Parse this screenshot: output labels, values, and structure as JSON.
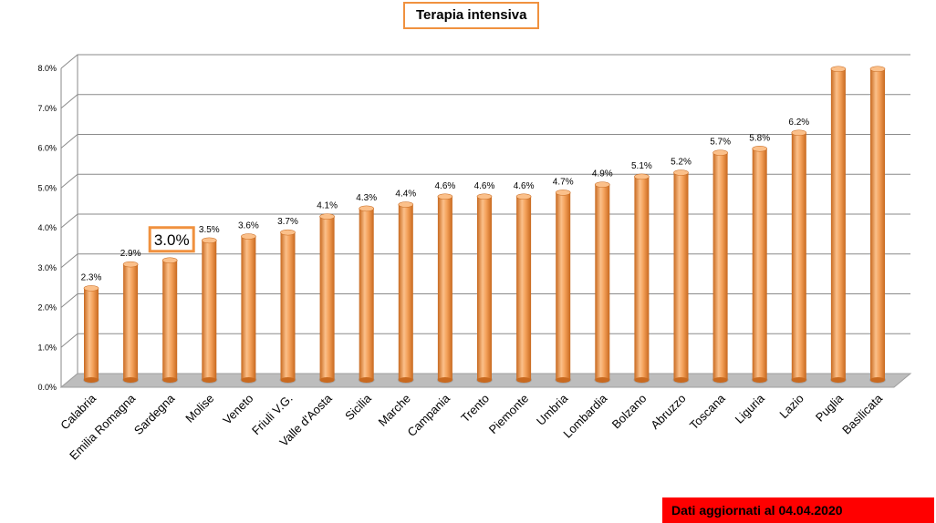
{
  "chart_data": {
    "type": "bar",
    "title": "Terapia intensiva",
    "categories": [
      "Calabria",
      "Emilia Romagna",
      "Sardegna",
      "Molise",
      "Veneto",
      "Friuli V.G.",
      "Valle d'Aosta",
      "Sicilia",
      "Marche",
      "Campania",
      "Trento",
      "Piemonte",
      "Umbria",
      "Lombardia",
      "Bolzano",
      "Abruzzo",
      "Toscana",
      "Liguria",
      "Lazio",
      "Puglia",
      "Basilicata"
    ],
    "values": [
      2.3,
      2.9,
      3.0,
      3.5,
      3.6,
      3.7,
      4.1,
      4.3,
      4.4,
      4.6,
      4.6,
      4.6,
      4.7,
      4.9,
      5.1,
      5.2,
      5.7,
      5.8,
      6.2,
      7.8,
      7.8
    ],
    "data_labels": [
      "2.3%",
      "2.9%",
      "3.0%",
      "3.5%",
      "3.6%",
      "3.7%",
      "4.1%",
      "4.3%",
      "4.4%",
      "4.6%",
      "4.6%",
      "4.6%",
      "4.7%",
      "4.9%",
      "5.1%",
      "5.2%",
      "5.7%",
      "5.8%",
      "6.2%",
      "",
      ""
    ],
    "highlighted_category": "Sardegna",
    "y_ticks": [
      "0.0%",
      "1.0%",
      "2.0%",
      "3.0%",
      "4.0%",
      "5.0%",
      "6.0%",
      "7.0%",
      "8.0%"
    ],
    "ylim": [
      0,
      8
    ],
    "grid": true,
    "xlabel": "",
    "ylabel": "",
    "colors": {
      "bar": "#f0913f",
      "bar_dark": "#c8691f",
      "bar_light": "#fbc08a",
      "highlight_border": "#f0913f",
      "grid": "#8a8a8a",
      "floor": "#bdbdbd"
    }
  },
  "footer": {
    "note": "Dati aggiornati al 04.04.2020",
    "background": "#ff0000"
  }
}
